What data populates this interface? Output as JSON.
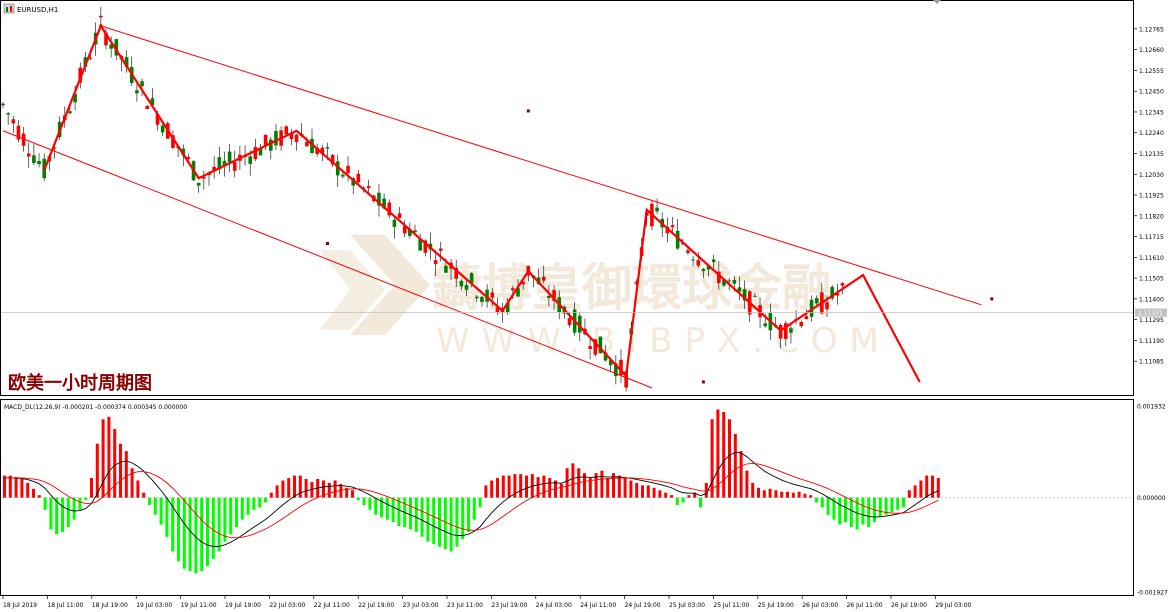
{
  "window_title": "EURUSD,H1",
  "overlay_caption": "欧美一小时周期图",
  "watermark": {
    "chinese": "鑄博皇御環球金融",
    "url": "WWW.BIBPX.COM"
  },
  "colors": {
    "background": "#ffffff",
    "bull_candle": "#008000",
    "bear_candle": "#ff0000",
    "zigzag": "#ff0000",
    "channel": "#ff0000",
    "macd_hist_pos": "#ff0000",
    "macd_hist_neg": "#00ff00",
    "macd_line": "#000000",
    "signal_line": "#ff0000",
    "text": "#000000"
  },
  "price_axis": {
    "ticks": [
      "1.12765",
      "1.12660",
      "1.12555",
      "1.12450",
      "1.12345",
      "1.12240",
      "1.12135",
      "1.12030",
      "1.11925",
      "1.11820",
      "1.11715",
      "1.11610",
      "1.11505",
      "1.11400",
      "1.11295",
      "1.11190",
      "1.11085"
    ],
    "current_price_label": "1.11331"
  },
  "time_axis": {
    "ticks": [
      "18 Jul 2019",
      "18 Jul 11:00",
      "18 Jul 19:00",
      "19 Jul 03:00",
      "19 Jul 11:00",
      "19 Jul 19:00",
      "22 Jul 03:00",
      "22 Jul 11:00",
      "22 Jul 19:00",
      "23 Jul 03:00",
      "23 Jul 11:00",
      "23 Jul 19:00",
      "24 Jul 03:00",
      "24 Jul 11:00",
      "24 Jul 19:00",
      "25 Jul 03:00",
      "25 Jul 11:00",
      "25 Jul 19:00",
      "26 Jul 03:00",
      "26 Jul 11:00",
      "26 Jul 19:00",
      "29 Jul 03:00"
    ]
  },
  "indicator": {
    "label": "MACD_DL(12,26,9) -0.000201 -0.000374 0.000345 0.000000",
    "axis_ticks": [
      "0.001932",
      "0.000000",
      "-0.001927"
    ]
  },
  "chart_data": [
    {
      "type": "candlestick",
      "title": "EURUSD,H1",
      "ylim": [
        1.11,
        1.1282
      ],
      "zigzag_pivots": [
        {
          "bar": 8,
          "price": 1.1205
        },
        {
          "bar": 19,
          "price": 1.1278
        },
        {
          "bar": 38,
          "price": 1.1201
        },
        {
          "bar": 57,
          "price": 1.1225
        },
        {
          "bar": 97,
          "price": 1.1134
        },
        {
          "bar": 102,
          "price": 1.1154
        },
        {
          "bar": 121,
          "price": 1.1101
        },
        {
          "bar": 125,
          "price": 1.1185
        },
        {
          "bar": 151,
          "price": 1.1124
        },
        {
          "bar": 167,
          "price": 1.1152
        },
        {
          "bar": 178,
          "price": 1.1098
        }
      ],
      "channel_upper": {
        "from": {
          "bar": 19,
          "price": 1.1278
        },
        "to": {
          "bar": 190,
          "price": 1.1137
        }
      },
      "channel_lower": {
        "from": {
          "bar": 0,
          "price": 1.1225
        },
        "to": {
          "bar": 126,
          "price": 1.1095
        }
      }
    },
    {
      "type": "bar",
      "title": "MACD_DL(12,26,9)",
      "ylim": [
        -0.001927,
        0.001932
      ],
      "zero_line": 0.0,
      "values_by_bar": [
        [
          0,
          0.00045
        ],
        [
          1,
          0.00045
        ],
        [
          2,
          0.00042
        ],
        [
          3,
          0.00038
        ],
        [
          4,
          0.0003
        ],
        [
          5,
          0.00018
        ],
        [
          6,
          5e-05
        ],
        [
          7,
          -0.00025
        ],
        [
          8,
          -0.00065
        ],
        [
          9,
          -0.00075
        ],
        [
          10,
          -0.0007
        ],
        [
          11,
          -0.0006
        ],
        [
          12,
          -0.00045
        ],
        [
          13,
          -0.00025
        ],
        [
          14,
          -5e-05
        ],
        [
          15,
          0.0004
        ],
        [
          16,
          0.0011
        ],
        [
          17,
          0.0016
        ],
        [
          18,
          0.00165
        ],
        [
          19,
          0.0014
        ],
        [
          20,
          0.0011
        ],
        [
          21,
          0.00095
        ],
        [
          22,
          0.0006
        ],
        [
          23,
          0.00035
        ],
        [
          24,
          0.0001
        ],
        [
          25,
          -0.00015
        ],
        [
          26,
          -0.00035
        ],
        [
          27,
          -0.00055
        ],
        [
          28,
          -0.0008
        ],
        [
          29,
          -0.0011
        ],
        [
          30,
          -0.0013
        ],
        [
          31,
          -0.00145
        ],
        [
          32,
          -0.0015
        ],
        [
          33,
          -0.00155
        ],
        [
          34,
          -0.0015
        ],
        [
          35,
          -0.0014
        ],
        [
          36,
          -0.00125
        ],
        [
          37,
          -0.0011
        ],
        [
          38,
          -0.0009
        ],
        [
          39,
          -0.00075
        ],
        [
          40,
          -0.0006
        ],
        [
          41,
          -0.00045
        ],
        [
          42,
          -0.00035
        ],
        [
          43,
          -0.00025
        ],
        [
          44,
          -0.0002
        ],
        [
          45,
          -0.0001
        ],
        [
          46,
          0.0001
        ],
        [
          47,
          0.00025
        ],
        [
          48,
          0.00035
        ],
        [
          49,
          0.0004
        ],
        [
          50,
          0.00045
        ],
        [
          51,
          0.00045
        ],
        [
          52,
          0.00038
        ],
        [
          53,
          0.00032
        ],
        [
          54,
          0.00038
        ],
        [
          55,
          0.00035
        ],
        [
          56,
          0.0003
        ],
        [
          57,
          0.00035
        ],
        [
          58,
          0.00028
        ],
        [
          59,
          0.0002
        ],
        [
          60,
          0.00015
        ],
        [
          61,
          -5e-05
        ],
        [
          62,
          -0.00015
        ],
        [
          63,
          -0.00025
        ],
        [
          64,
          -0.00035
        ],
        [
          65,
          -0.0004
        ],
        [
          66,
          -0.00045
        ],
        [
          67,
          -0.0005
        ],
        [
          68,
          -0.00058
        ],
        [
          69,
          -0.0006
        ],
        [
          70,
          -0.00065
        ],
        [
          71,
          -0.0007
        ],
        [
          72,
          -0.0008
        ],
        [
          73,
          -0.0009
        ],
        [
          74,
          -0.00095
        ],
        [
          75,
          -0.001
        ],
        [
          76,
          -0.00105
        ],
        [
          77,
          -0.0011
        ],
        [
          78,
          -0.001
        ],
        [
          79,
          -0.00085
        ],
        [
          80,
          -0.0007
        ],
        [
          81,
          -0.00045
        ],
        [
          82,
          -0.0002
        ],
        [
          83,
          0.00025
        ],
        [
          84,
          0.00035
        ],
        [
          85,
          0.0004
        ],
        [
          86,
          0.00045
        ],
        [
          87,
          0.00045
        ],
        [
          88,
          0.00048
        ],
        [
          89,
          0.00048
        ],
        [
          90,
          0.00045
        ],
        [
          91,
          0.00048
        ],
        [
          92,
          0.00042
        ],
        [
          93,
          0.00045
        ],
        [
          94,
          0.0004
        ],
        [
          95,
          0.00035
        ],
        [
          96,
          0.00028
        ],
        [
          97,
          0.0006
        ],
        [
          98,
          0.0007
        ],
        [
          99,
          0.0006
        ],
        [
          100,
          0.0005
        ],
        [
          101,
          0.0004
        ],
        [
          102,
          0.0005
        ],
        [
          103,
          0.00055
        ],
        [
          104,
          0.0004
        ],
        [
          105,
          0.0005
        ],
        [
          106,
          0.00045
        ],
        [
          107,
          0.0004
        ],
        [
          108,
          0.00035
        ],
        [
          109,
          0.0003
        ],
        [
          110,
          0.00025
        ],
        [
          111,
          0.00025
        ],
        [
          112,
          0.0002
        ],
        [
          113,
          0.00015
        ],
        [
          114,
          0.0001
        ],
        [
          115,
          5e-05
        ],
        [
          116,
          -0.00015
        ],
        [
          117,
          -0.0001
        ],
        [
          118,
          5e-05
        ],
        [
          119,
          0.0001
        ],
        [
          120,
          -0.0002
        ],
        [
          121,
          0.0003
        ],
        [
          122,
          0.0016
        ],
        [
          123,
          0.0018
        ],
        [
          124,
          0.00175
        ],
        [
          125,
          0.0016
        ],
        [
          126,
          0.0013
        ],
        [
          127,
          0.00095
        ],
        [
          128,
          0.00055
        ],
        [
          129,
          0.0003
        ],
        [
          130,
          0.0002
        ],
        [
          131,
          0.00015
        ],
        [
          132,
          0.00018
        ],
        [
          133,
          0.00015
        ],
        [
          134,
          0.00012
        ],
        [
          135,
          0.00012
        ],
        [
          136,
          0.0001
        ],
        [
          137,
          0.00012
        ],
        [
          138,
          8e-05
        ],
        [
          139,
          5e-05
        ],
        [
          140,
          -0.0001
        ],
        [
          141,
          -0.0002
        ],
        [
          142,
          -0.00035
        ],
        [
          143,
          -0.00045
        ],
        [
          144,
          -0.00055
        ],
        [
          145,
          -0.0005
        ],
        [
          146,
          -0.0006
        ],
        [
          147,
          -0.00065
        ],
        [
          148,
          -0.00055
        ],
        [
          149,
          -0.0006
        ],
        [
          150,
          -0.0005
        ],
        [
          151,
          -0.0004
        ],
        [
          152,
          -0.00035
        ],
        [
          153,
          -0.0003
        ],
        [
          154,
          -0.00025
        ],
        [
          155,
          -0.0002
        ],
        [
          156,
          0.00015
        ],
        [
          157,
          0.00025
        ],
        [
          158,
          0.00035
        ],
        [
          159,
          0.00045
        ],
        [
          160,
          0.00045
        ],
        [
          161,
          0.0004
        ]
      ]
    }
  ]
}
